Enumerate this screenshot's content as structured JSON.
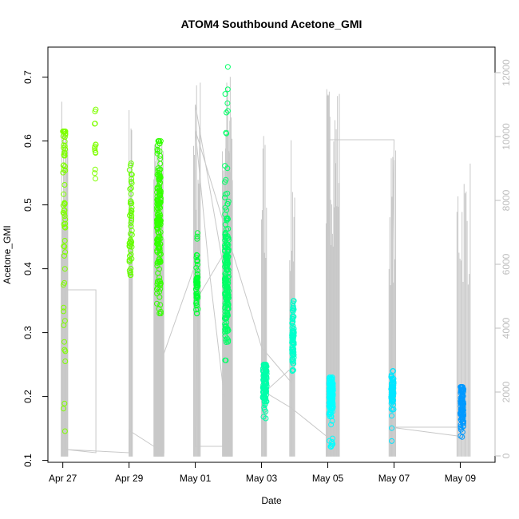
{
  "chart_data": {
    "type": "scatter",
    "title": "ATOM4 Southbound Acetone_GMI",
    "xlabel": "Date",
    "ylabel": "Acetone_GMI",
    "x_ticks": [
      {
        "day": 0,
        "label": "Apr 27"
      },
      {
        "day": 2,
        "label": "Apr 29"
      },
      {
        "day": 4,
        "label": "May 01"
      },
      {
        "day": 6,
        "label": "May 03"
      },
      {
        "day": 8,
        "label": "May 05"
      },
      {
        "day": 10,
        "label": "May 07"
      },
      {
        "day": 12,
        "label": "May 09"
      }
    ],
    "y_ticks": [
      "0.1",
      "0.2",
      "0.3",
      "0.4",
      "0.5",
      "0.6",
      "0.7"
    ],
    "y_ticks_right": [
      "0",
      "2000",
      "4000",
      "6000",
      "8000",
      "10000",
      "12000"
    ],
    "xlim": [
      -0.45,
      13.05
    ],
    "ylim": [
      0.097,
      0.747
    ],
    "ylim_right": [
      -200,
      12800
    ],
    "right_axis_color": "#bebebe",
    "point_colors": [
      "#7fff00",
      "#66ff00",
      "#33ff00",
      "#00ff33",
      "#00ff99",
      "#00ffcc",
      "#00ffff",
      "#00e5ff",
      "#00ccff",
      "#0099ff"
    ],
    "clusters": [
      {
        "x": 0.04,
        "xs": 0.04,
        "mid": 0.52,
        "spread": 0.12,
        "min": 0.145,
        "max": 0.615,
        "n": 70,
        "color": "#7fff00"
      },
      {
        "x": 0.98,
        "xs": 0.02,
        "mid": 0.6,
        "spread": 0.05,
        "min": 0.53,
        "max": 0.685,
        "n": 14,
        "color": "#7fff00"
      },
      {
        "x": 2.05,
        "xs": 0.04,
        "mid": 0.47,
        "spread": 0.06,
        "min": 0.39,
        "max": 0.565,
        "n": 55,
        "color": "#66ff00"
      },
      {
        "x": 2.9,
        "xs": 0.06,
        "mid": 0.47,
        "spread": 0.08,
        "min": 0.33,
        "max": 0.6,
        "n": 180,
        "color": "#33ff00"
      },
      {
        "x": 4.05,
        "xs": 0.03,
        "mid": 0.37,
        "spread": 0.03,
        "min": 0.33,
        "max": 0.48,
        "n": 60,
        "color": "#00ff33"
      },
      {
        "x": 4.95,
        "xs": 0.06,
        "mid": 0.38,
        "spread": 0.06,
        "min": 0.255,
        "max": 0.72,
        "n": 200,
        "color": "#00ff66"
      },
      {
        "x": 6.1,
        "xs": 0.06,
        "mid": 0.22,
        "spread": 0.025,
        "min": 0.16,
        "max": 0.25,
        "n": 110,
        "color": "#00ffaa"
      },
      {
        "x": 6.95,
        "xs": 0.03,
        "mid": 0.29,
        "spread": 0.03,
        "min": 0.24,
        "max": 0.35,
        "n": 90,
        "color": "#00ffcc"
      },
      {
        "x": 8.1,
        "xs": 0.06,
        "mid": 0.2,
        "spread": 0.02,
        "min": 0.12,
        "max": 0.23,
        "n": 160,
        "color": "#00ffff"
      },
      {
        "x": 9.95,
        "xs": 0.04,
        "mid": 0.21,
        "spread": 0.02,
        "min": 0.125,
        "max": 0.24,
        "n": 70,
        "color": "#00e5ff"
      },
      {
        "x": 12.05,
        "xs": 0.05,
        "mid": 0.19,
        "spread": 0.025,
        "min": 0.125,
        "max": 0.215,
        "n": 110,
        "color": "#0099ff"
      }
    ],
    "spike_groups": [
      {
        "x0": -0.05,
        "x1": 0.15,
        "n": 12,
        "top": 11500
      },
      {
        "x0": 2.0,
        "x1": 2.1,
        "n": 6,
        "top": 11800
      },
      {
        "x0": 2.75,
        "x1": 3.05,
        "n": 26,
        "top": 10100
      },
      {
        "x0": 3.95,
        "x1": 4.15,
        "n": 10,
        "top": 12100
      },
      {
        "x0": 4.82,
        "x1": 5.12,
        "n": 24,
        "top": 12200
      },
      {
        "x0": 6.0,
        "x1": 6.15,
        "n": 8,
        "top": 10600
      },
      {
        "x0": 6.85,
        "x1": 7.0,
        "n": 8,
        "top": 9900
      },
      {
        "x0": 7.95,
        "x1": 8.35,
        "n": 22,
        "top": 11900
      },
      {
        "x0": 9.85,
        "x1": 10.05,
        "n": 10,
        "top": 9700
      },
      {
        "x0": 11.9,
        "x1": 12.3,
        "n": 14,
        "top": 9500
      }
    ],
    "track": [
      [
        0.1,
        200
      ],
      [
        0.1,
        5200
      ],
      [
        1.0,
        5200
      ],
      [
        1.0,
        100
      ],
      [
        0.1,
        200
      ],
      [
        2.0,
        100
      ],
      [
        2.0,
        800
      ],
      [
        3.05,
        100
      ],
      [
        3.05,
        3200
      ],
      [
        4.0,
        6000
      ],
      [
        4.0,
        11000
      ],
      [
        5.0,
        5000
      ],
      [
        4.9,
        6400
      ],
      [
        4.1,
        5000
      ],
      [
        4.0,
        300
      ],
      [
        5.05,
        300
      ],
      [
        4.4,
        6000
      ],
      [
        4.0,
        10200
      ],
      [
        6.0,
        3400
      ],
      [
        6.9,
        2300
      ],
      [
        6.95,
        2800
      ],
      [
        6.1,
        2000
      ],
      [
        6.9,
        1500
      ],
      [
        8.1,
        500
      ],
      [
        8.0,
        9900
      ],
      [
        10.0,
        9900
      ],
      [
        9.9,
        900
      ],
      [
        12.1,
        600
      ],
      [
        12.0,
        900
      ],
      [
        10.0,
        900
      ]
    ]
  }
}
